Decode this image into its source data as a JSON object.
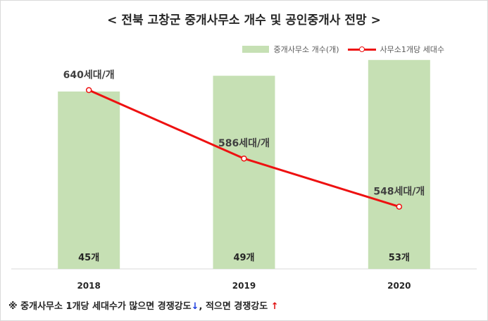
{
  "title": "< 전북 고창군 중개사무소 개수 및 공인중개사 전망 >",
  "legend": {
    "bar_label": "중개사무소 개수(개)",
    "line_label": "사무소1개당 세대수"
  },
  "chart_data": {
    "type": "bar",
    "categories": [
      "2018",
      "2019",
      "2020"
    ],
    "series": [
      {
        "name": "중개사무소 개수(개)",
        "type": "bar",
        "values": [
          45,
          49,
          53
        ],
        "labels": [
          "45개",
          "49개",
          "53개"
        ]
      },
      {
        "name": "사무소1개당 세대수",
        "type": "line",
        "values": [
          640,
          586,
          548
        ],
        "labels": [
          "640세대/개",
          "586세대/개",
          "548세대/개"
        ]
      }
    ],
    "colors": {
      "bar": "#c6e0b4",
      "line": "#ee1111"
    },
    "grid": false,
    "legend_position": "top-right"
  },
  "note": {
    "prefix": "※ 중개사무소 1개당 세대수가 많으면 경쟁강도",
    "down_arrow": "↓",
    "middle": ", 적으면 경쟁강도 ",
    "up_arrow": "↑"
  }
}
